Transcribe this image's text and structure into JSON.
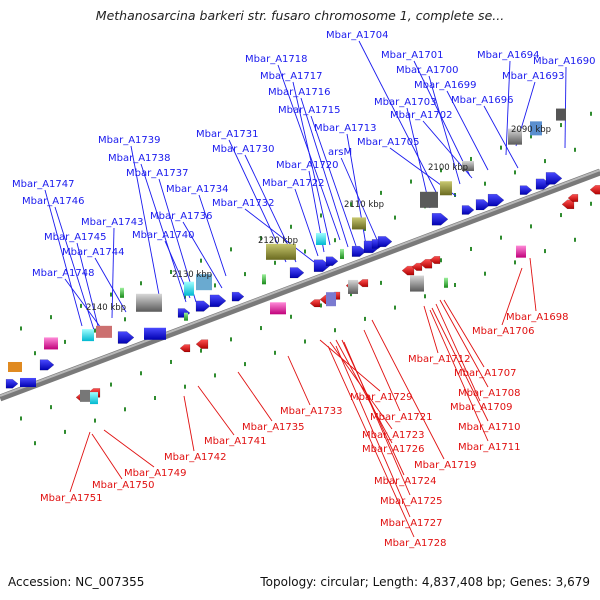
{
  "title": "Methanosarcina barkeri str. fusaro chromosome 1, complete se...",
  "footer": {
    "accession": "Accession: NC_007355",
    "summary": "Topology: circular; Length: 4,837,408 bp; Genes: 3,679"
  },
  "colors": {
    "forward": "#1a1aee",
    "reverse": "#e01010",
    "backbone": "#7a7a7a",
    "tick": "#2e8b2e"
  },
  "kbp_labels": [
    "2090 kbp",
    "2100 kbp",
    "2110 kbp",
    "2120 kbp",
    "2130 kbp",
    "2140 kbp"
  ],
  "forward_genes": [
    "Mbar_A1704",
    "Mbar_A1718",
    "Mbar_A1701",
    "Mbar_A1694",
    "Mbar_A1690",
    "Mbar_A1717",
    "Mbar_A1700",
    "Mbar_A1693",
    "Mbar_A1716",
    "Mbar_A1699",
    "Mbar_A1715",
    "Mbar_A1703",
    "Mbar_A1696",
    "Mbar_A1713",
    "Mbar_A1702",
    "Mbar_A1739",
    "Mbar_A1731",
    "Mbar_A1705",
    "Mbar_A1738",
    "Mbar_A1730",
    "arsM",
    "Mbar_A1737",
    "Mbar_A1720",
    "Mbar_A1747",
    "Mbar_A1722",
    "Mbar_A1734",
    "Mbar_A1746",
    "Mbar_A1732",
    "Mbar_A1736",
    "Mbar_A1743",
    "Mbar_A1745",
    "Mbar_A1740",
    "Mbar_A1744",
    "Mbar_A1748"
  ],
  "reverse_genes": [
    "Mbar_A1698",
    "Mbar_A1706",
    "Mbar_A1712",
    "Mbar_A1707",
    "Mbar_A1708",
    "Mbar_A1709",
    "Mbar_A1729",
    "Mbar_A1733",
    "Mbar_A1721",
    "Mbar_A1735",
    "Mbar_A1710",
    "Mbar_A1723",
    "Mbar_A1711",
    "Mbar_A1741",
    "Mbar_A1726",
    "Mbar_A1742",
    "Mbar_A1719",
    "Mbar_A1749",
    "Mbar_A1724",
    "Mbar_A1750",
    "Mbar_A1751",
    "Mbar_A1725",
    "Mbar_A1727",
    "Mbar_A1728"
  ]
}
